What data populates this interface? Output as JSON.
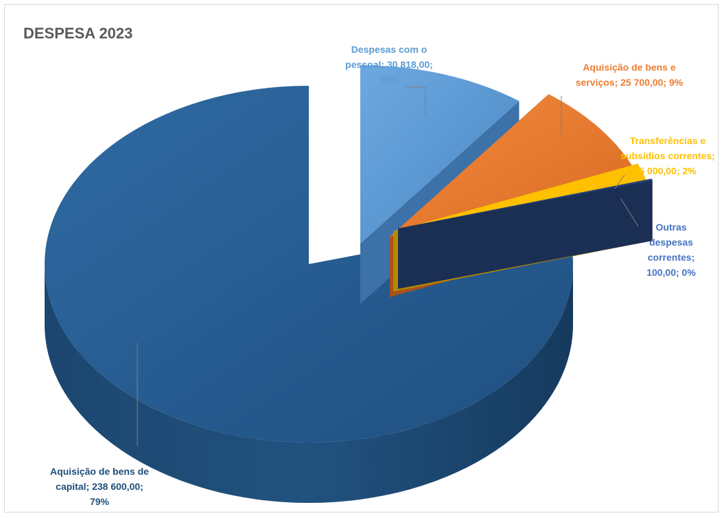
{
  "chart_data": {
    "type": "pie",
    "title": "DESPESA 2023",
    "slices": [
      {
        "name": "Aquisição de bens de capital",
        "value": 238600.0,
        "percent": 79,
        "color": "#255e91",
        "label_lines": [
          "Aquisição de bens de",
          "capital; 238 600,00;",
          "79%"
        ],
        "label_color": "#1f4e79"
      },
      {
        "name": "Despesas com o pessoal",
        "value": 30818.0,
        "percent": 10,
        "color": "#5b9bd5",
        "label_lines": [
          "Despesas com o",
          "pessoal; 30 818,00;",
          "10%"
        ],
        "label_color": "#5b9bd5"
      },
      {
        "name": "Aquisição de bens e serviços",
        "value": 25700.0,
        "percent": 9,
        "color": "#ed7d31",
        "label_lines": [
          "Aquisição de bens e",
          "serviços; 25 700,00; 9%"
        ],
        "label_color": "#ed7d31"
      },
      {
        "name": "Transferências e subsídios correntes",
        "value": 5000.0,
        "percent": 2,
        "color": "#ffc000",
        "label_lines": [
          "Transferências e",
          "subsídios correntes;",
          "5 000,00; 2%"
        ],
        "label_color": "#ffc000"
      },
      {
        "name": "Outras despesas correntes",
        "value": 100.0,
        "percent": 0,
        "color": "#264478",
        "label_lines": [
          "Outras",
          "despesas",
          "correntes;",
          "100,00; 0%"
        ],
        "label_color": "#4472c4"
      }
    ]
  }
}
